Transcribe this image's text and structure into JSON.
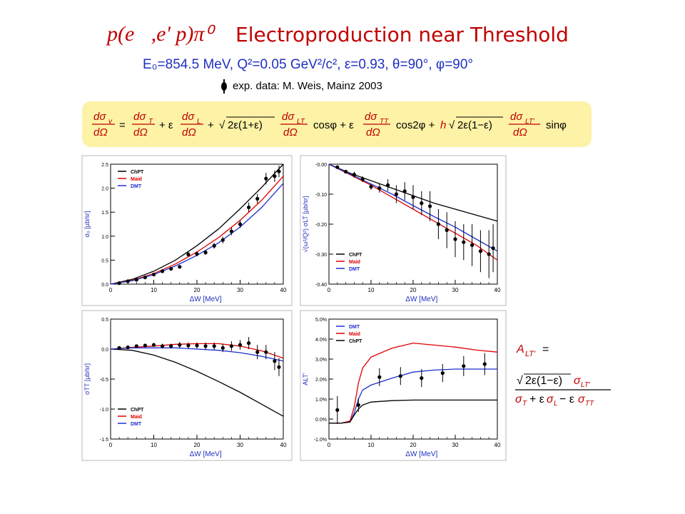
{
  "title": {
    "reaction": "p(e⃗,e' p)π⁰",
    "text": "Electroproduction near Threshold"
  },
  "kinematics": "E₀=854.5 MeV,  Q²=0.05 GeV²/c²,  ε=0.93,  θ=90°,  φ=90°",
  "exp_data": "exp. data: M. Weis, Mainz 2003",
  "formula": {
    "lhs": "dσv/dΩ",
    "terms": [
      "dσT/dΩ",
      "+ ε dσL/dΩ",
      "+ √(2ε(1+ε)) dσLT/dΩ cosφ",
      "+ ε dσTT/dΩ cos2φ",
      "+ h √(2ε(1−ε)) dσLT'/dΩ sinφ"
    ]
  },
  "alt_formula": {
    "label": "A_LT' =",
    "numerator": "√(2ε(1−ε)) σLT'",
    "denominator": "σT + ε σL − ε σTT"
  },
  "colors": {
    "chpt": "#000000",
    "maid": "#e00000",
    "dmt": "#1f2fd0",
    "title": "#c00000",
    "kin": "#1f2fbf",
    "box": "#fdf2a6"
  },
  "chart_data": [
    {
      "type": "line",
      "xlabel": "ΔW  [MeV]",
      "ylabel": "σ₀  [µb/sr]",
      "xlim": [
        0,
        40
      ],
      "ylim": [
        0,
        2.5
      ],
      "xticks": [
        "0",
        "10",
        "20",
        "30",
        "40"
      ],
      "yticks": [
        "0.0",
        "0.5",
        "1.0",
        "1.5",
        "2.0",
        "2.5"
      ],
      "legend_position": "top-left",
      "x": [
        0,
        5,
        10,
        15,
        20,
        25,
        30,
        35,
        40
      ],
      "series": [
        {
          "name": "ChPT",
          "values": [
            0.0,
            0.1,
            0.27,
            0.5,
            0.8,
            1.15,
            1.57,
            2.02,
            2.5
          ]
        },
        {
          "name": "Maid",
          "values": [
            0.0,
            0.08,
            0.22,
            0.42,
            0.67,
            0.97,
            1.33,
            1.75,
            2.25
          ]
        },
        {
          "name": "DMT",
          "values": [
            0.0,
            0.07,
            0.2,
            0.38,
            0.6,
            0.86,
            1.19,
            1.6,
            2.1
          ]
        }
      ],
      "points": [
        {
          "x": 2,
          "y": 0.02,
          "err": 0.02
        },
        {
          "x": 4,
          "y": 0.06,
          "err": 0.02
        },
        {
          "x": 6,
          "y": 0.09,
          "err": 0.02
        },
        {
          "x": 8,
          "y": 0.14,
          "err": 0.02
        },
        {
          "x": 10,
          "y": 0.2,
          "err": 0.03
        },
        {
          "x": 12,
          "y": 0.27,
          "err": 0.03
        },
        {
          "x": 14,
          "y": 0.32,
          "err": 0.03
        },
        {
          "x": 16,
          "y": 0.36,
          "err": 0.03
        },
        {
          "x": 18,
          "y": 0.62,
          "err": 0.05
        },
        {
          "x": 20,
          "y": 0.63,
          "err": 0.05
        },
        {
          "x": 22,
          "y": 0.66,
          "err": 0.05
        },
        {
          "x": 24,
          "y": 0.8,
          "err": 0.06
        },
        {
          "x": 26,
          "y": 0.92,
          "err": 0.07
        },
        {
          "x": 28,
          "y": 1.1,
          "err": 0.08
        },
        {
          "x": 30,
          "y": 1.25,
          "err": 0.08
        },
        {
          "x": 32,
          "y": 1.6,
          "err": 0.1
        },
        {
          "x": 34,
          "y": 1.78,
          "err": 0.1
        },
        {
          "x": 36,
          "y": 2.2,
          "err": 0.12
        },
        {
          "x": 38,
          "y": 2.25,
          "err": 0.12
        },
        {
          "x": 39,
          "y": 2.35,
          "err": 0.12
        }
      ]
    },
    {
      "type": "line",
      "xlabel": "ΔW  [MeV]",
      "ylabel": "√(ω²/Q²) σLT  [µb/sr]",
      "xlim": [
        0,
        40
      ],
      "ylim": [
        -0.4,
        0.0
      ],
      "xticks": [
        "0",
        "10",
        "20",
        "30",
        "40"
      ],
      "yticks": [
        "-0.00",
        "-0.10",
        "-0.20",
        "-0.30",
        "-0.40"
      ],
      "legend_position": "bottom-left",
      "x": [
        0,
        5,
        10,
        15,
        20,
        25,
        30,
        35,
        40
      ],
      "series": [
        {
          "name": "ChPT",
          "values": [
            0.0,
            -0.03,
            -0.055,
            -0.08,
            -0.105,
            -0.13,
            -0.15,
            -0.17,
            -0.19
          ]
        },
        {
          "name": "Maid",
          "values": [
            0.0,
            -0.035,
            -0.07,
            -0.11,
            -0.15,
            -0.19,
            -0.23,
            -0.27,
            -0.32
          ]
        },
        {
          "name": "DMT",
          "values": [
            0.0,
            -0.033,
            -0.066,
            -0.1,
            -0.138,
            -0.175,
            -0.21,
            -0.25,
            -0.29
          ]
        }
      ],
      "points": [
        {
          "x": 2,
          "y": -0.01,
          "err": 0.005
        },
        {
          "x": 4,
          "y": -0.025,
          "err": 0.005
        },
        {
          "x": 6,
          "y": -0.035,
          "err": 0.01
        },
        {
          "x": 8,
          "y": -0.05,
          "err": 0.01
        },
        {
          "x": 10,
          "y": -0.075,
          "err": 0.01
        },
        {
          "x": 12,
          "y": -0.08,
          "err": 0.015
        },
        {
          "x": 14,
          "y": -0.07,
          "err": 0.02
        },
        {
          "x": 16,
          "y": -0.1,
          "err": 0.03
        },
        {
          "x": 18,
          "y": -0.09,
          "err": 0.03
        },
        {
          "x": 20,
          "y": -0.11,
          "err": 0.04
        },
        {
          "x": 22,
          "y": -0.13,
          "err": 0.04
        },
        {
          "x": 24,
          "y": -0.14,
          "err": 0.05
        },
        {
          "x": 26,
          "y": -0.2,
          "err": 0.05
        },
        {
          "x": 28,
          "y": -0.22,
          "err": 0.06
        },
        {
          "x": 30,
          "y": -0.25,
          "err": 0.06
        },
        {
          "x": 32,
          "y": -0.26,
          "err": 0.06
        },
        {
          "x": 34,
          "y": -0.27,
          "err": 0.07
        },
        {
          "x": 36,
          "y": -0.29,
          "err": 0.07
        },
        {
          "x": 38,
          "y": -0.3,
          "err": 0.08
        },
        {
          "x": 39,
          "y": -0.28,
          "err": 0.08
        }
      ]
    },
    {
      "type": "line",
      "xlabel": "ΔW  [MeV]",
      "ylabel": "σTT  [µb/sr]",
      "xlim": [
        0,
        40
      ],
      "ylim": [
        -1.5,
        0.5
      ],
      "xticks": [
        "0",
        "10",
        "20",
        "30",
        "40"
      ],
      "yticks": [
        "0.5",
        "0.0",
        "-0.5",
        "-1.0",
        "-1.5"
      ],
      "legend_position": "bottom-left",
      "x": [
        0,
        5,
        10,
        15,
        20,
        25,
        30,
        35,
        40
      ],
      "series": [
        {
          "name": "ChPT",
          "values": [
            0.0,
            -0.02,
            -0.1,
            -0.22,
            -0.37,
            -0.54,
            -0.72,
            -0.92,
            -1.12
          ]
        },
        {
          "name": "Maid",
          "values": [
            0.0,
            0.03,
            0.05,
            0.08,
            0.09,
            0.09,
            0.05,
            -0.03,
            -0.15
          ]
        },
        {
          "name": "DMT",
          "values": [
            0.0,
            0.02,
            0.02,
            0.02,
            0.0,
            -0.02,
            -0.06,
            -0.12,
            -0.2
          ]
        }
      ],
      "points": [
        {
          "x": 2,
          "y": 0.02,
          "err": 0.02
        },
        {
          "x": 4,
          "y": 0.03,
          "err": 0.02
        },
        {
          "x": 6,
          "y": 0.05,
          "err": 0.02
        },
        {
          "x": 8,
          "y": 0.06,
          "err": 0.03
        },
        {
          "x": 10,
          "y": 0.07,
          "err": 0.03
        },
        {
          "x": 12,
          "y": 0.05,
          "err": 0.04
        },
        {
          "x": 14,
          "y": 0.05,
          "err": 0.04
        },
        {
          "x": 16,
          "y": 0.07,
          "err": 0.05
        },
        {
          "x": 18,
          "y": 0.06,
          "err": 0.05
        },
        {
          "x": 20,
          "y": 0.06,
          "err": 0.05
        },
        {
          "x": 22,
          "y": 0.05,
          "err": 0.06
        },
        {
          "x": 24,
          "y": 0.05,
          "err": 0.06
        },
        {
          "x": 26,
          "y": 0.02,
          "err": 0.07
        },
        {
          "x": 28,
          "y": 0.05,
          "err": 0.08
        },
        {
          "x": 30,
          "y": 0.07,
          "err": 0.08
        },
        {
          "x": 32,
          "y": 0.1,
          "err": 0.1
        },
        {
          "x": 34,
          "y": -0.05,
          "err": 0.12
        },
        {
          "x": 36,
          "y": -0.05,
          "err": 0.12
        },
        {
          "x": 38,
          "y": -0.2,
          "err": 0.15
        },
        {
          "x": 39,
          "y": -0.3,
          "err": 0.15
        }
      ]
    },
    {
      "type": "line",
      "xlabel": "ΔW  [MeV]",
      "ylabel": "ALT'",
      "xlim": [
        0,
        40
      ],
      "ylim": [
        -1.0,
        5.0
      ],
      "xticks": [
        "0",
        "10",
        "20",
        "30",
        "40"
      ],
      "yticks": [
        "5.0%",
        "4.0%",
        "3.0%",
        "2.0%",
        "1.0%",
        "0.0%",
        "-1.0%"
      ],
      "legend_position": "top-left",
      "x": [
        0,
        3,
        5,
        6,
        7,
        8,
        10,
        15,
        20,
        25,
        30,
        35,
        40
      ],
      "series": [
        {
          "name": "DMT",
          "values": [
            -0.2,
            -0.2,
            -0.15,
            0.3,
            1.0,
            1.45,
            1.7,
            2.05,
            2.35,
            2.45,
            2.5,
            2.5,
            2.5
          ]
        },
        {
          "name": "Maid",
          "values": [
            -0.2,
            -0.2,
            -0.1,
            0.6,
            1.8,
            2.55,
            3.1,
            3.55,
            3.8,
            3.7,
            3.6,
            3.45,
            3.35
          ]
        },
        {
          "name": "ChPT",
          "values": [
            -0.2,
            -0.2,
            -0.15,
            0.2,
            0.5,
            0.7,
            0.85,
            0.92,
            0.95,
            0.95,
            0.95,
            0.95,
            0.95
          ]
        }
      ],
      "points": [
        {
          "x": 2,
          "y": 0.45,
          "err": 0.7
        },
        {
          "x": 7,
          "y": 0.7,
          "err": 0.35
        },
        {
          "x": 12,
          "y": 2.1,
          "err": 0.45
        },
        {
          "x": 17,
          "y": 2.15,
          "err": 0.45
        },
        {
          "x": 22,
          "y": 2.05,
          "err": 0.45
        },
        {
          "x": 27,
          "y": 2.3,
          "err": 0.45
        },
        {
          "x": 32,
          "y": 2.65,
          "err": 0.5
        },
        {
          "x": 37,
          "y": 2.75,
          "err": 0.55
        }
      ]
    }
  ]
}
